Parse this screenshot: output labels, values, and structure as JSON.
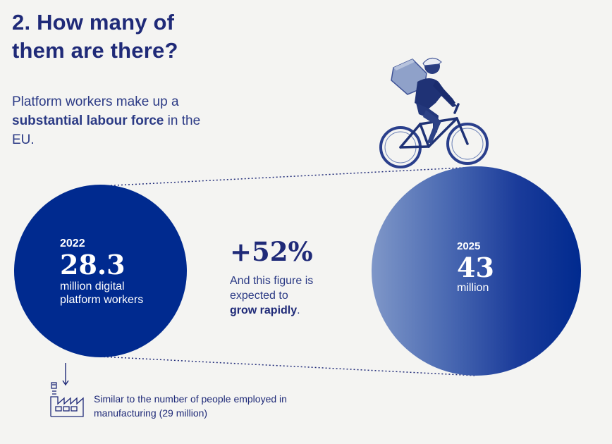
{
  "title": {
    "line1": "2.  How many of",
    "line2": "them are there?"
  },
  "intro": {
    "before": "Platform workers make up a ",
    "emphasis": "substantial labour force",
    "after": " in the EU."
  },
  "left_circle": {
    "year": "2022",
    "value": "28.3",
    "description": "million digital platform workers",
    "color": "#002a8f"
  },
  "growth": {
    "percent": "+52%",
    "text_before": "And this figure is expected to ",
    "emphasis": "grow rapidly",
    "text_after": "."
  },
  "right_circle": {
    "year": "2025",
    "value": "43",
    "unit": "million",
    "color": "#002a8f"
  },
  "note": {
    "icon": "factory-icon",
    "text": "Similar to the number of people employed in manufacturing (29 million)"
  },
  "illustration": "cyclist-delivery-icon"
}
